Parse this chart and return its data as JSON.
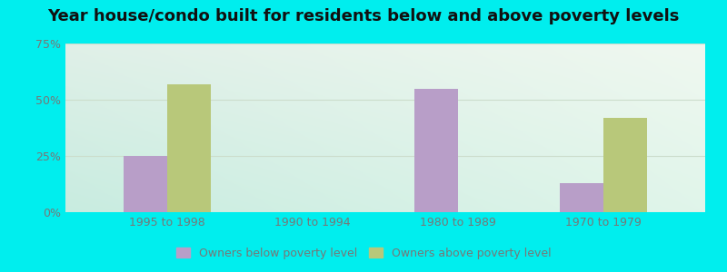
{
  "title": "Year house/condo built for residents below and above poverty levels",
  "categories": [
    "1995 to 1998",
    "1990 to 1994",
    "1980 to 1989",
    "1970 to 1979"
  ],
  "below_poverty": [
    25,
    0,
    55,
    13
  ],
  "above_poverty": [
    57,
    0,
    0,
    42
  ],
  "below_color": "#b89ec8",
  "above_color": "#b8c87a",
  "ylim": [
    0,
    75
  ],
  "yticks": [
    0,
    25,
    50,
    75
  ],
  "ytick_labels": [
    "0%",
    "25%",
    "50%",
    "75%"
  ],
  "background_outer": "#00eeee",
  "bg_color_topleft": "#d8eedd",
  "bg_color_topright": "#f0f8f0",
  "bg_color_bottomleft": "#c8f0e8",
  "bg_color_bottomright": "#e8f8f0",
  "grid_color": "#ccddcc",
  "bar_width": 0.3,
  "legend_below_label": "Owners below poverty level",
  "legend_above_label": "Owners above poverty level",
  "title_fontsize": 13,
  "tick_fontsize": 9,
  "legend_fontsize": 9,
  "tick_color": "#777777",
  "title_color": "#111111"
}
